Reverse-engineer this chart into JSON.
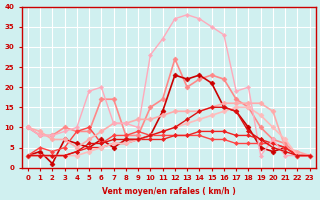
{
  "xlabel": "Vent moyen/en rafales ( km/h )",
  "ylabel": "",
  "background_color": "#d0f0f0",
  "grid_color": "#ffffff",
  "x": [
    0,
    1,
    2,
    3,
    4,
    5,
    6,
    7,
    8,
    9,
    10,
    11,
    12,
    13,
    14,
    15,
    16,
    17,
    18,
    19,
    20,
    21,
    22,
    23
  ],
  "series": [
    {
      "y": [
        10,
        8,
        8,
        10,
        9,
        9,
        17,
        17,
        8,
        8,
        15,
        17,
        27,
        20,
        22,
        23,
        22,
        17,
        15,
        10,
        7,
        6,
        3,
        3
      ],
      "color": "#ff8888",
      "linewidth": 1.2,
      "marker": "D",
      "markersize": 2.5
    },
    {
      "y": [
        3,
        4,
        1,
        7,
        6,
        5,
        7,
        5,
        7,
        7,
        8,
        14,
        23,
        22,
        23,
        21,
        15,
        14,
        10,
        5,
        4,
        5,
        3,
        3
      ],
      "color": "#cc0000",
      "linewidth": 1.2,
      "marker": "D",
      "markersize": 2.5
    },
    {
      "y": [
        3,
        5,
        4,
        5,
        9,
        10,
        6,
        8,
        8,
        9,
        8,
        8,
        8,
        8,
        8,
        7,
        7,
        6,
        6,
        6,
        6,
        5,
        3,
        3
      ],
      "color": "#ff4444",
      "linewidth": 1.0,
      "marker": "D",
      "markersize": 2.0
    },
    {
      "y": [
        10,
        9,
        7,
        7,
        5,
        7,
        9,
        11,
        11,
        12,
        12,
        13,
        14,
        14,
        14,
        15,
        16,
        16,
        16,
        16,
        14,
        5,
        4,
        3
      ],
      "color": "#ffaaaa",
      "linewidth": 1.2,
      "marker": "D",
      "markersize": 2.5
    },
    {
      "y": [
        3,
        3,
        3,
        3,
        4,
        5,
        5,
        6,
        6,
        7,
        7,
        7,
        8,
        8,
        9,
        9,
        9,
        8,
        8,
        7,
        6,
        5,
        3,
        3
      ],
      "color": "#ee2222",
      "linewidth": 1.0,
      "marker": "D",
      "markersize": 2.0
    },
    {
      "y": [
        3,
        3,
        3,
        3,
        3,
        4,
        5,
        6,
        6,
        7,
        8,
        9,
        10,
        11,
        12,
        13,
        14,
        15,
        15,
        13,
        10,
        7,
        3,
        3
      ],
      "color": "#ffbbbb",
      "linewidth": 1.2,
      "marker": "D",
      "markersize": 2.5
    },
    {
      "y": [
        10,
        8,
        8,
        9,
        10,
        19,
        20,
        11,
        11,
        10,
        28,
        32,
        37,
        38,
        37,
        35,
        33,
        19,
        20,
        3,
        7,
        3,
        3,
        3
      ],
      "color": "#ffaabb",
      "linewidth": 1.0,
      "marker": "D",
      "markersize": 2.0
    },
    {
      "y": [
        3,
        3,
        3,
        3,
        4,
        6,
        6,
        7,
        7,
        7,
        8,
        9,
        10,
        12,
        14,
        15,
        15,
        14,
        9,
        7,
        5,
        4,
        3,
        3
      ],
      "color": "#dd1111",
      "linewidth": 1.0,
      "marker": "D",
      "markersize": 2.0
    }
  ],
  "ylim": [
    0,
    40
  ],
  "yticks": [
    0,
    5,
    10,
    15,
    20,
    25,
    30,
    35,
    40
  ],
  "xlim": [
    -0.5,
    23.5
  ]
}
